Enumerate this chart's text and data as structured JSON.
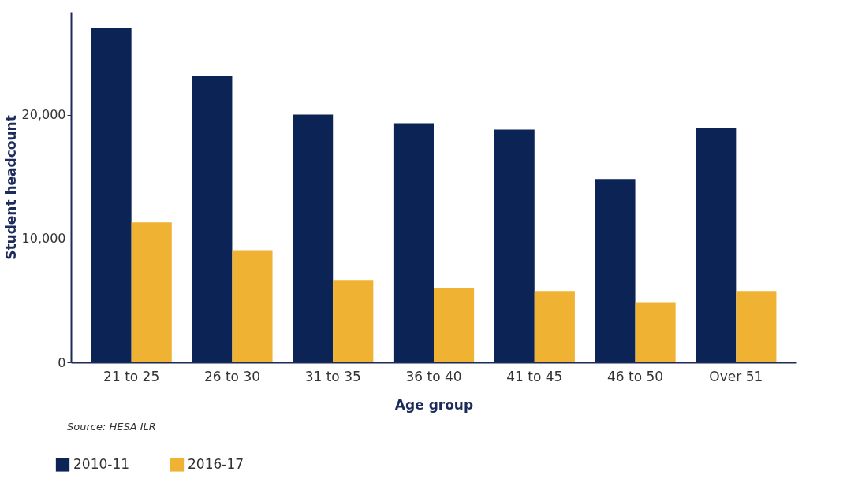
{
  "chart_data": {
    "type": "bar",
    "xlabel": "Age group",
    "ylabel": "Student headcount",
    "categories": [
      "21 to 25",
      "26 to 30",
      "31 to 35",
      "36 to 40",
      "41 to 45",
      "46 to 50",
      "Over 51"
    ],
    "series": [
      {
        "name": "2010-11",
        "color": "#0b2355",
        "values": [
          27000,
          23100,
          20000,
          19300,
          18800,
          14800,
          18900
        ]
      },
      {
        "name": "2016-17",
        "color": "#f0b233",
        "values": [
          11300,
          9000,
          6600,
          6000,
          5700,
          4800,
          5700
        ]
      }
    ],
    "ylim": [
      0,
      28300
    ],
    "yticks": [
      0,
      {
        "value": 10000,
        "label": "10,000"
      },
      {
        "value": 20000,
        "label": "20,000"
      }
    ],
    "grid": false,
    "legend": "bottom left",
    "annotations": [
      "Source: HESA ILR"
    ]
  }
}
